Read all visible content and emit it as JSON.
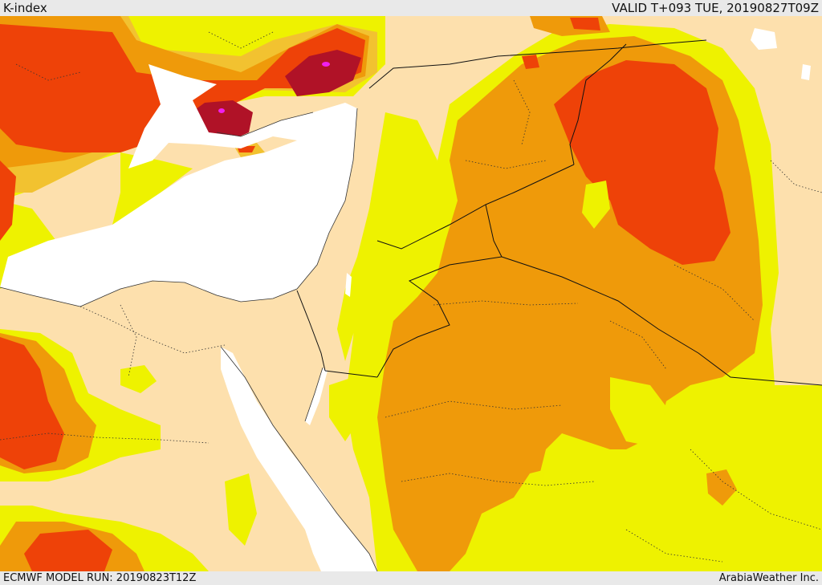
{
  "header": {
    "title": "K-index",
    "valid_time": "VALID T+093 TUE, 20190827T09Z"
  },
  "footer": {
    "model_run": "ECMWF MODEL RUN: 20190823T12Z",
    "credit": "ArabiaWeather Inc."
  },
  "map": {
    "type": "filled-contour-map",
    "field": "K-index",
    "colors": {
      "land_base": "#fde0ad",
      "sea": "#ffffff",
      "yellow": "#eef200",
      "light_orange": "#f2c230",
      "orange": "#ef9a0a",
      "red_orange": "#ee4208",
      "dark_red": "#b01227",
      "magenta": "#f020f0",
      "border": "#111111",
      "admin_border": "#333333"
    }
  }
}
